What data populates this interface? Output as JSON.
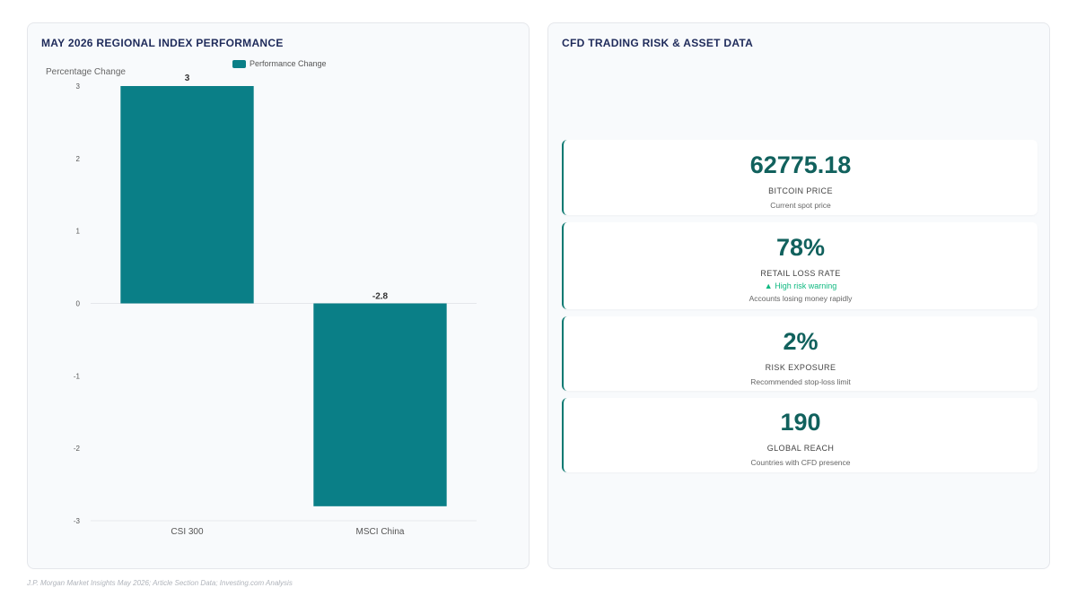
{
  "left_panel": {
    "title": "MAY 2026 REGIONAL INDEX PERFORMANCE"
  },
  "right_panel": {
    "title": "CFD TRADING RISK & ASSET DATA",
    "cards": [
      {
        "value": "62775.18",
        "label": "BITCOIN PRICE",
        "desc": "Current spot price"
      },
      {
        "value": "78%",
        "label": "RETAIL LOSS RATE",
        "warning": "▲ High risk warning",
        "desc": "Accounts losing money rapidly"
      },
      {
        "value": "2%",
        "label": "RISK EXPOSURE",
        "desc": "Recommended stop-loss limit"
      },
      {
        "value": "190",
        "label": "GLOBAL REACH",
        "desc": "Countries with CFD presence"
      }
    ]
  },
  "chart_data": {
    "type": "bar",
    "categories": [
      "CSI 300",
      "MSCI China"
    ],
    "series": [
      {
        "name": "Performance Change",
        "values": [
          3,
          -2.8
        ]
      }
    ],
    "data_labels": [
      "3",
      "-2.8"
    ],
    "ylabel": "Percentage Change",
    "ylim": [
      -3,
      3
    ],
    "yticks": [
      "3",
      "2",
      "1",
      "0",
      "-1",
      "-2",
      "-3"
    ],
    "legend": "top",
    "grid": false,
    "bar_color": "#0a7f87"
  },
  "source": "J.P. Morgan Market Insights May 2026; Article Section Data; Investing.com Analysis"
}
